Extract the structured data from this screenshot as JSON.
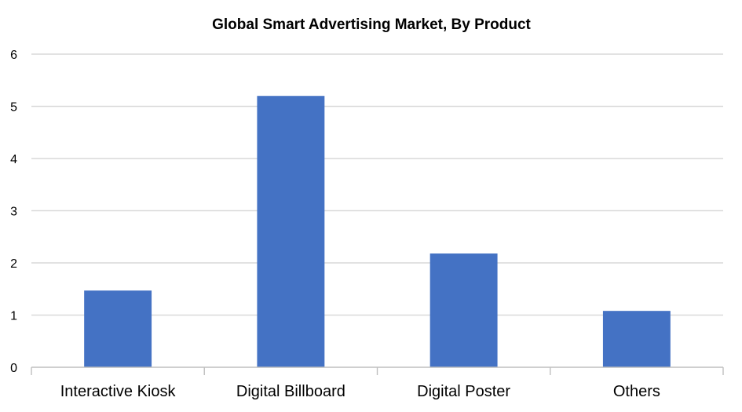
{
  "chart_data": {
    "type": "bar",
    "title": "Global Smart Advertising Market, By Product",
    "xlabel": "",
    "ylabel": "",
    "categories": [
      "Interactive Kiosk",
      "Digital Billboard",
      "Digital Poster",
      "Others"
    ],
    "values": [
      1.47,
      5.2,
      2.18,
      1.08
    ],
    "ylim": [
      0,
      6
    ],
    "yticks": [
      "0",
      "1",
      "2",
      "3",
      "4",
      "5",
      "6"
    ],
    "grid": true,
    "legend": "none",
    "bar_color": "#4472c4"
  }
}
